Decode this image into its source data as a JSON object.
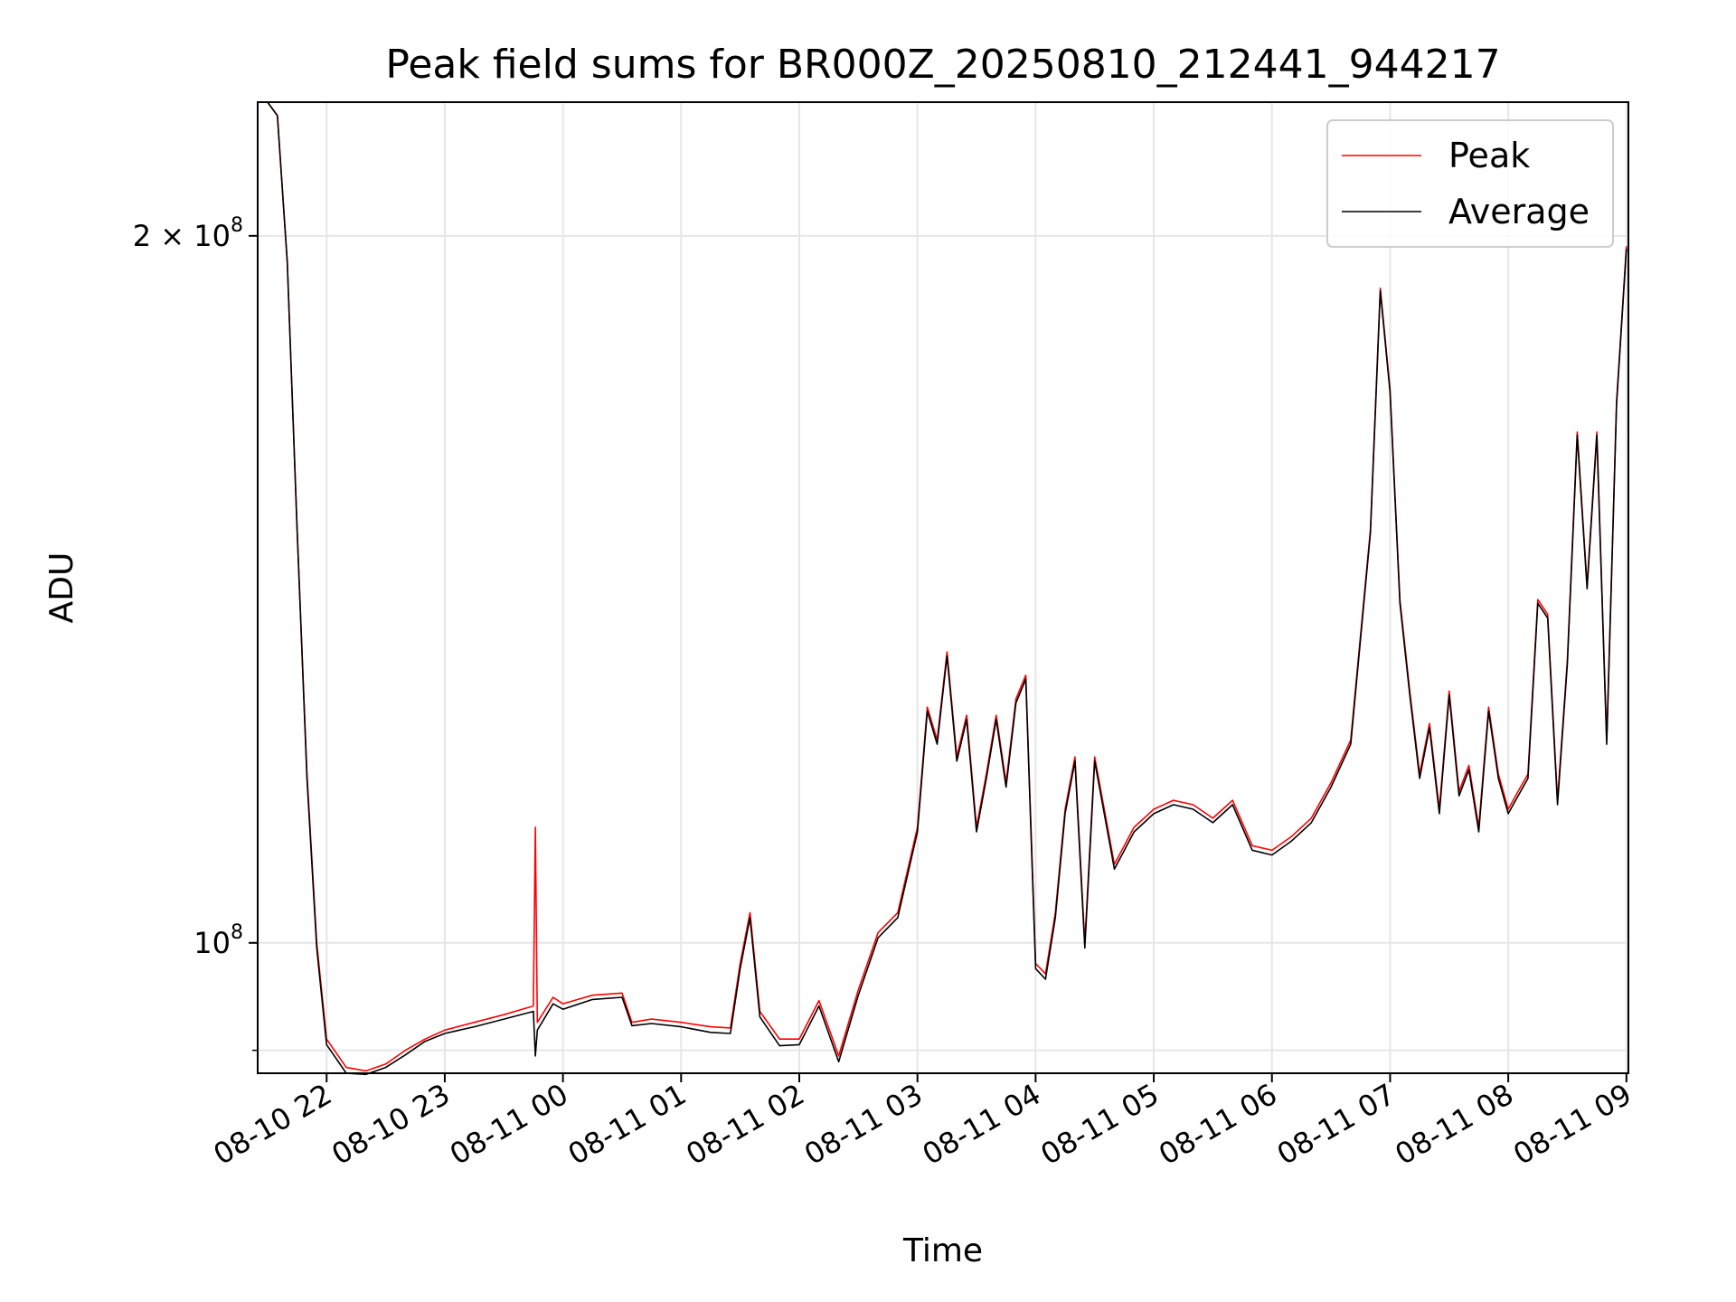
{
  "chart_data": {
    "type": "line",
    "title": "Peak field sums for BR000Z_20250810_212441_944217",
    "xlabel": "Time",
    "ylabel": "ADU",
    "xlim": [
      "2025-08-10 21:25",
      "2025-08-11 09:01"
    ],
    "ylim": [
      88000000,
      228000000
    ],
    "y_scale": "log",
    "grid": true,
    "legend_position": "top-right",
    "x_ticks": [
      "08-10 22",
      "08-10 23",
      "08-11 00",
      "08-11 01",
      "08-11 02",
      "08-11 03",
      "08-11 04",
      "08-11 05",
      "08-11 06",
      "08-11 07",
      "08-11 08",
      "08-11 09"
    ],
    "y_ticks": [
      {
        "label": "2 × 10^8",
        "base": "2 × 10",
        "exp": "8",
        "value": 200000000
      },
      {
        "label": "10^8",
        "base": "10",
        "exp": "8",
        "value": 100000000
      }
    ],
    "series": [
      {
        "name": "Peak",
        "color": "#ff0000",
        "x": [
          "2025-08-10 21:25",
          "2025-08-10 21:30",
          "2025-08-10 21:35",
          "2025-08-10 21:40",
          "2025-08-10 21:45",
          "2025-08-10 21:50",
          "2025-08-10 21:55",
          "2025-08-10 22:00",
          "2025-08-10 22:10",
          "2025-08-10 22:20",
          "2025-08-10 22:30",
          "2025-08-10 22:40",
          "2025-08-10 22:50",
          "2025-08-10 23:00",
          "2025-08-10 23:15",
          "2025-08-10 23:30",
          "2025-08-10 23:45",
          "2025-08-10 23:46",
          "2025-08-10 23:47",
          "2025-08-10 23:55",
          "2025-08-11 00:00",
          "2025-08-11 00:15",
          "2025-08-11 00:30",
          "2025-08-11 00:35",
          "2025-08-11 00:45",
          "2025-08-11 01:00",
          "2025-08-11 01:15",
          "2025-08-11 01:25",
          "2025-08-11 01:30",
          "2025-08-11 01:35",
          "2025-08-11 01:40",
          "2025-08-11 01:50",
          "2025-08-11 02:00",
          "2025-08-11 02:10",
          "2025-08-11 02:20",
          "2025-08-11 02:30",
          "2025-08-11 02:40",
          "2025-08-11 02:50",
          "2025-08-11 03:00",
          "2025-08-11 03:05",
          "2025-08-11 03:10",
          "2025-08-11 03:15",
          "2025-08-11 03:20",
          "2025-08-11 03:25",
          "2025-08-11 03:30",
          "2025-08-11 03:35",
          "2025-08-11 03:40",
          "2025-08-11 03:45",
          "2025-08-11 03:50",
          "2025-08-11 03:55",
          "2025-08-11 04:00",
          "2025-08-11 04:05",
          "2025-08-11 04:10",
          "2025-08-11 04:15",
          "2025-08-11 04:20",
          "2025-08-11 04:25",
          "2025-08-11 04:30",
          "2025-08-11 04:40",
          "2025-08-11 04:50",
          "2025-08-11 05:00",
          "2025-08-11 05:10",
          "2025-08-11 05:20",
          "2025-08-11 05:30",
          "2025-08-11 05:40",
          "2025-08-11 05:50",
          "2025-08-11 06:00",
          "2025-08-11 06:10",
          "2025-08-11 06:20",
          "2025-08-11 06:30",
          "2025-08-11 06:40",
          "2025-08-11 06:50",
          "2025-08-11 06:55",
          "2025-08-11 07:00",
          "2025-08-11 07:05",
          "2025-08-11 07:10",
          "2025-08-11 07:15",
          "2025-08-11 07:20",
          "2025-08-11 07:25",
          "2025-08-11 07:30",
          "2025-08-11 07:35",
          "2025-08-11 07:40",
          "2025-08-11 07:45",
          "2025-08-11 07:50",
          "2025-08-11 07:55",
          "2025-08-11 08:00",
          "2025-08-11 08:05",
          "2025-08-11 08:10",
          "2025-08-11 08:15",
          "2025-08-11 08:20",
          "2025-08-11 08:25",
          "2025-08-11 08:30",
          "2025-08-11 08:35",
          "2025-08-11 08:40",
          "2025-08-11 08:45",
          "2025-08-11 08:50",
          "2025-08-11 08:55",
          "2025-08-11 09:00"
        ],
        "y": [
          228000000,
          228000000,
          225000000,
          195000000,
          150000000,
          118000000,
          100000000,
          91000000,
          88500000,
          88200000,
          88800000,
          90000000,
          91000000,
          91800000,
          92500000,
          93200000,
          94000000,
          112000000,
          92500000,
          94800000,
          94200000,
          95000000,
          95200000,
          92500000,
          92800000,
          92500000,
          92100000,
          92000000,
          98000000,
          103000000,
          93500000,
          91000000,
          91000000,
          94500000,
          89500000,
          95500000,
          101000000,
          103000000,
          112000000,
          126000000,
          122000000,
          133000000,
          120000000,
          125000000,
          112000000,
          118000000,
          125000000,
          117000000,
          127000000,
          130000000,
          98000000,
          97000000,
          103000000,
          114000000,
          120000000,
          100000000,
          120000000,
          108000000,
          112000000,
          114000000,
          115000000,
          114500000,
          113000000,
          115000000,
          110000000,
          109500000,
          111000000,
          113000000,
          117000000,
          122000000,
          150000000,
          190000000,
          172000000,
          140000000,
          128000000,
          118000000,
          124000000,
          114000000,
          128000000,
          116000000,
          119000000,
          112000000,
          126000000,
          118000000,
          114000000,
          116000000,
          118000000,
          140000000,
          138000000,
          115000000,
          132000000,
          165000000,
          142000000,
          165000000,
          122000000,
          170000000,
          198000000
        ]
      },
      {
        "name": "Average",
        "color": "#000000",
        "x": [
          "2025-08-10 21:25",
          "2025-08-10 21:30",
          "2025-08-10 21:35",
          "2025-08-10 21:40",
          "2025-08-10 21:45",
          "2025-08-10 21:50",
          "2025-08-10 21:55",
          "2025-08-10 22:00",
          "2025-08-10 22:10",
          "2025-08-10 22:20",
          "2025-08-10 22:30",
          "2025-08-10 22:40",
          "2025-08-10 22:50",
          "2025-08-10 23:00",
          "2025-08-10 23:15",
          "2025-08-10 23:30",
          "2025-08-10 23:45",
          "2025-08-10 23:46",
          "2025-08-10 23:47",
          "2025-08-10 23:55",
          "2025-08-11 00:00",
          "2025-08-11 00:15",
          "2025-08-11 00:30",
          "2025-08-11 00:35",
          "2025-08-11 00:45",
          "2025-08-11 01:00",
          "2025-08-11 01:15",
          "2025-08-11 01:25",
          "2025-08-11 01:30",
          "2025-08-11 01:35",
          "2025-08-11 01:40",
          "2025-08-11 01:50",
          "2025-08-11 02:00",
          "2025-08-11 02:10",
          "2025-08-11 02:20",
          "2025-08-11 02:30",
          "2025-08-11 02:40",
          "2025-08-11 02:50",
          "2025-08-11 03:00",
          "2025-08-11 03:05",
          "2025-08-11 03:10",
          "2025-08-11 03:15",
          "2025-08-11 03:20",
          "2025-08-11 03:25",
          "2025-08-11 03:30",
          "2025-08-11 03:35",
          "2025-08-11 03:40",
          "2025-08-11 03:45",
          "2025-08-11 03:50",
          "2025-08-11 03:55",
          "2025-08-11 04:00",
          "2025-08-11 04:05",
          "2025-08-11 04:10",
          "2025-08-11 04:15",
          "2025-08-11 04:20",
          "2025-08-11 04:25",
          "2025-08-11 04:30",
          "2025-08-11 04:40",
          "2025-08-11 04:50",
          "2025-08-11 05:00",
          "2025-08-11 05:10",
          "2025-08-11 05:20",
          "2025-08-11 05:30",
          "2025-08-11 05:40",
          "2025-08-11 05:50",
          "2025-08-11 06:00",
          "2025-08-11 06:10",
          "2025-08-11 06:20",
          "2025-08-11 06:30",
          "2025-08-11 06:40",
          "2025-08-11 06:50",
          "2025-08-11 06:55",
          "2025-08-11 07:00",
          "2025-08-11 07:05",
          "2025-08-11 07:10",
          "2025-08-11 07:15",
          "2025-08-11 07:20",
          "2025-08-11 07:25",
          "2025-08-11 07:30",
          "2025-08-11 07:35",
          "2025-08-11 07:40",
          "2025-08-11 07:45",
          "2025-08-11 07:50",
          "2025-08-11 07:55",
          "2025-08-11 08:00",
          "2025-08-11 08:05",
          "2025-08-11 08:10",
          "2025-08-11 08:15",
          "2025-08-11 08:20",
          "2025-08-11 08:25",
          "2025-08-11 08:30",
          "2025-08-11 08:35",
          "2025-08-11 08:40",
          "2025-08-11 08:45",
          "2025-08-11 08:50",
          "2025-08-11 08:55",
          "2025-08-11 09:00"
        ],
        "y": [
          228000000,
          228000000,
          225000000,
          195000000,
          150000000,
          117500000,
          99500000,
          90500000,
          88000000,
          87900000,
          88500000,
          89600000,
          90800000,
          91500000,
          92100000,
          92800000,
          93500000,
          89500000,
          91800000,
          94200000,
          93700000,
          94600000,
          94800000,
          92200000,
          92400000,
          92100000,
          91600000,
          91500000,
          97500000,
          102500000,
          93000000,
          90400000,
          90500000,
          94000000,
          89000000,
          95000000,
          100500000,
          102500000,
          111500000,
          125500000,
          121500000,
          132500000,
          119500000,
          124500000,
          111500000,
          117500000,
          124500000,
          116500000,
          126500000,
          129500000,
          97500000,
          96500000,
          102500000,
          113500000,
          119500000,
          99500000,
          119500000,
          107500000,
          111500000,
          113500000,
          114500000,
          114000000,
          112500000,
          114500000,
          109500000,
          109000000,
          110500000,
          112500000,
          116500000,
          121500000,
          149500000,
          189500000,
          171500000,
          139500000,
          127500000,
          117500000,
          123500000,
          113500000,
          127500000,
          115500000,
          118500000,
          111500000,
          125500000,
          117500000,
          113500000,
          115500000,
          117500000,
          139500000,
          137500000,
          114500000,
          131500000,
          164500000,
          141500000,
          164500000,
          121500000,
          169500000,
          197500000
        ]
      }
    ]
  }
}
